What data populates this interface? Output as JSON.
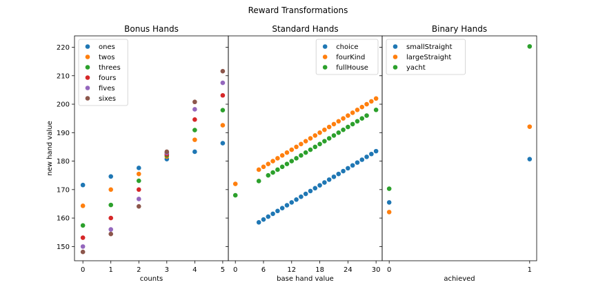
{
  "figure_title": "Reward Transformations",
  "colors": [
    "#1f77b4",
    "#ff7f0e",
    "#2ca02c",
    "#d62728",
    "#9467bd",
    "#8c564b"
  ],
  "chart_data": [
    {
      "type": "scatter",
      "title": "Bonus Hands",
      "xlabel": "counts",
      "ylabel": "new hand value",
      "xlim": [
        -0.3,
        5.2
      ],
      "ylim": [
        145,
        224
      ],
      "xticks": [
        0,
        1,
        2,
        3,
        4,
        5
      ],
      "yticks": [
        150,
        160,
        170,
        180,
        190,
        200,
        210,
        220
      ],
      "legend_position": "top-left",
      "series": [
        {
          "name": "ones",
          "x": [
            0,
            1,
            2,
            3,
            4,
            5
          ],
          "y": [
            171.6,
            174.6,
            177.6,
            180.7,
            183.3,
            186.3
          ]
        },
        {
          "name": "twos",
          "x": [
            0,
            1,
            2,
            3,
            4,
            5
          ],
          "y": [
            164.3,
            170.0,
            175.5,
            181.6,
            187.5,
            192.6
          ]
        },
        {
          "name": "threes",
          "x": [
            0,
            1,
            2,
            3,
            4,
            5
          ],
          "y": [
            157.4,
            164.6,
            173.1,
            182.0,
            190.9,
            197.9
          ]
        },
        {
          "name": "fours",
          "x": [
            0,
            1,
            2,
            3,
            4,
            5
          ],
          "y": [
            153.1,
            160.0,
            170.0,
            182.4,
            194.6,
            203.1
          ]
        },
        {
          "name": "fives",
          "x": [
            0,
            1,
            2,
            3,
            4,
            5
          ],
          "y": [
            150.0,
            156.0,
            166.7,
            182.9,
            198.2,
            207.5
          ]
        },
        {
          "name": "sixes",
          "x": [
            0,
            1,
            2,
            3,
            4,
            5
          ],
          "y": [
            148.1,
            154.4,
            164.1,
            183.3,
            200.8,
            211.6
          ]
        }
      ]
    },
    {
      "type": "scatter",
      "title": "Standard Hands",
      "xlabel": "base hand value",
      "ylabel": "",
      "xlim": [
        -1.5,
        31.3
      ],
      "ylim": [
        145,
        224
      ],
      "xticks": [
        0,
        6,
        12,
        18,
        24,
        30
      ],
      "yticks": [
        150,
        160,
        170,
        180,
        190,
        200,
        210,
        220
      ],
      "legend_position": "top-right",
      "series": [
        {
          "name": "choice",
          "x": [
            5,
            6,
            7,
            8,
            9,
            10,
            11,
            12,
            13,
            14,
            15,
            16,
            17,
            18,
            19,
            20,
            21,
            22,
            23,
            24,
            25,
            26,
            27,
            28,
            29,
            30
          ],
          "y": [
            158.5,
            159.5,
            160.5,
            161.5,
            162.5,
            163.5,
            164.5,
            165.5,
            166.5,
            167.5,
            168.5,
            169.5,
            170.5,
            171.5,
            172.5,
            173.5,
            174.5,
            175.5,
            176.5,
            177.5,
            178.5,
            179.5,
            180.5,
            181.5,
            182.5,
            183.5
          ]
        },
        {
          "name": "fourKind",
          "x": [
            0,
            5,
            6,
            7,
            8,
            9,
            10,
            11,
            12,
            13,
            14,
            15,
            16,
            17,
            18,
            19,
            20,
            21,
            22,
            23,
            24,
            25,
            26,
            27,
            28,
            29,
            30
          ],
          "y": [
            172.0,
            177.0,
            178.0,
            179.0,
            180.0,
            181.0,
            182.0,
            183.0,
            184.0,
            185.0,
            186.0,
            187.0,
            188.0,
            189.0,
            190.0,
            191.0,
            192.0,
            193.0,
            194.0,
            195.0,
            196.0,
            197.0,
            198.0,
            199.0,
            200.0,
            201.0,
            202.0
          ]
        },
        {
          "name": "fullHouse",
          "x": [
            0,
            5,
            7,
            8,
            9,
            10,
            11,
            12,
            13,
            14,
            15,
            16,
            17,
            18,
            19,
            20,
            21,
            22,
            23,
            24,
            25,
            26,
            27,
            28,
            30
          ],
          "y": [
            168.0,
            173.0,
            175.0,
            176.0,
            177.0,
            178.0,
            179.0,
            180.0,
            181.0,
            182.0,
            183.0,
            184.0,
            185.0,
            186.0,
            187.0,
            188.0,
            189.0,
            190.0,
            191.0,
            192.0,
            193.0,
            194.0,
            195.0,
            196.0,
            198.0
          ]
        }
      ]
    },
    {
      "type": "scatter",
      "title": "Binary Hands",
      "xlabel": "achieved",
      "ylabel": "",
      "xlim": [
        -0.05,
        1.05
      ],
      "ylim": [
        145,
        224
      ],
      "xticks": [
        0,
        1
      ],
      "yticks": [
        150,
        160,
        170,
        180,
        190,
        200,
        210,
        220
      ],
      "legend_position": "top-left",
      "series": [
        {
          "name": "smallStraight",
          "x": [
            0,
            1
          ],
          "y": [
            165.5,
            180.7
          ]
        },
        {
          "name": "largeStraight",
          "x": [
            0,
            1
          ],
          "y": [
            162.1,
            192.1
          ]
        },
        {
          "name": "yacht",
          "x": [
            0,
            1
          ],
          "y": [
            170.3,
            220.3
          ]
        }
      ]
    }
  ]
}
